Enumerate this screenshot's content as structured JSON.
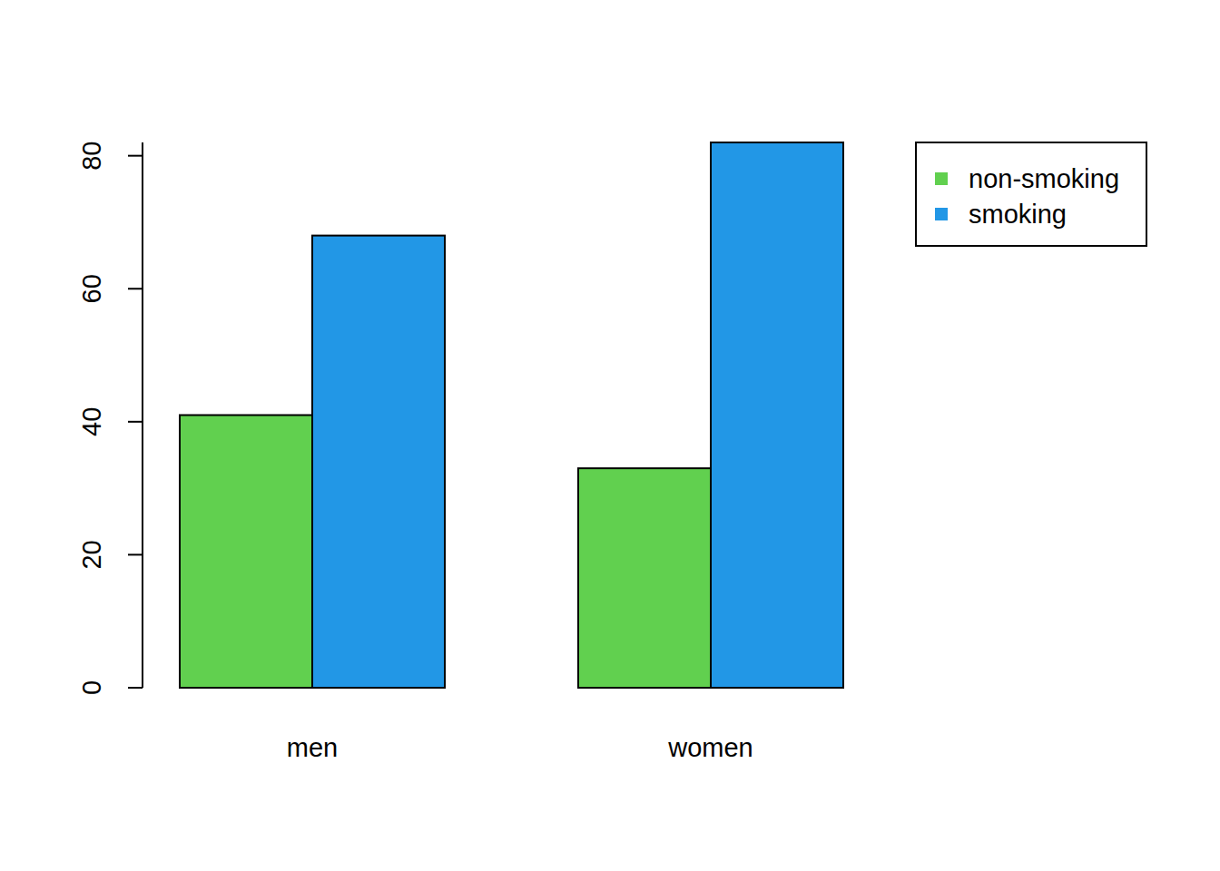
{
  "chart_data": {
    "type": "bar",
    "categories": [
      "men",
      "women"
    ],
    "series": [
      {
        "name": "non-smoking",
        "color": "#61d04f",
        "values": [
          41,
          33
        ]
      },
      {
        "name": "smoking",
        "color": "#2297e6",
        "values": [
          68,
          82
        ]
      }
    ],
    "ylim": [
      0,
      82
    ],
    "yticks": [
      0,
      20,
      40,
      60,
      80
    ],
    "grid": false,
    "legend": "top-right"
  }
}
